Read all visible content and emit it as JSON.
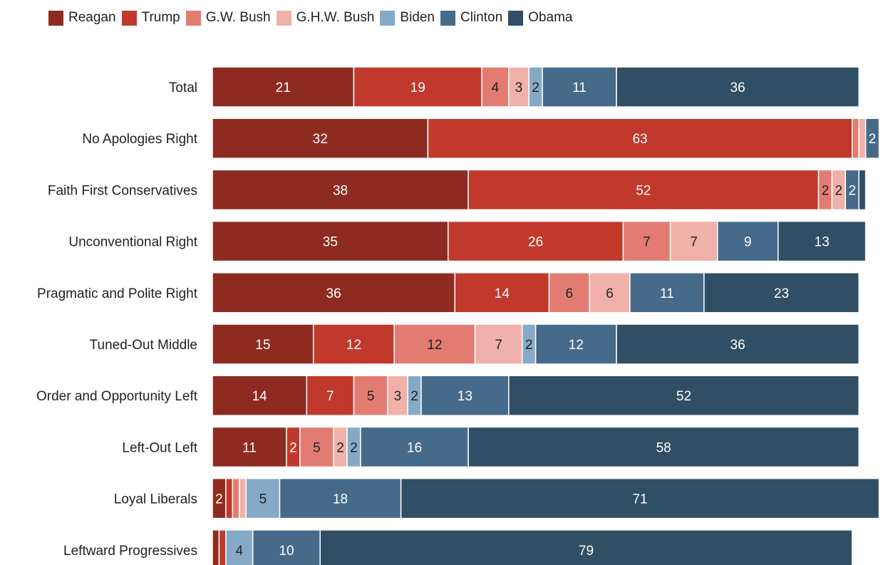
{
  "chart_data": {
    "type": "bar",
    "orientation": "horizontal",
    "stacked": true,
    "legend_position": "top-left",
    "grid": false,
    "xlim": [
      0,
      100
    ],
    "categories": [
      "Total",
      "No Apologies Right",
      "Faith First Conservatives",
      "Unconventional Right",
      "Pragmatic and Polite Right",
      "Tuned-Out Middle",
      "Order and Opportunity Left",
      "Left-Out Left",
      "Loyal Liberals",
      "Leftward Progressives"
    ],
    "series": [
      {
        "name": "Reagan",
        "color": "#8e2b20",
        "values": [
          21,
          32,
          38,
          35,
          36,
          15,
          14,
          11,
          2,
          1
        ]
      },
      {
        "name": "Trump",
        "color": "#c0392b",
        "values": [
          19,
          63,
          52,
          26,
          14,
          12,
          7,
          2,
          1,
          1
        ]
      },
      {
        "name": "G.W. Bush",
        "color": "#e27c72",
        "values": [
          4,
          1,
          2,
          7,
          6,
          12,
          5,
          5,
          1,
          0
        ]
      },
      {
        "name": "G.H.W. Bush",
        "color": "#efb1a9",
        "values": [
          3,
          1,
          2,
          7,
          6,
          7,
          3,
          2,
          1,
          0
        ]
      },
      {
        "name": "Biden",
        "color": "#85aac8",
        "values": [
          2,
          0,
          0,
          0,
          0,
          2,
          2,
          2,
          5,
          4
        ]
      },
      {
        "name": "Clinton",
        "color": "#466a89",
        "values": [
          11,
          2,
          2,
          9,
          11,
          12,
          13,
          16,
          18,
          10
        ]
      },
      {
        "name": "Obama",
        "color": "#304e64",
        "values": [
          36,
          0,
          1,
          13,
          23,
          36,
          52,
          58,
          71,
          79
        ]
      }
    ],
    "data_labels": [
      [
        "21",
        "19",
        "4",
        "3",
        "2",
        "11",
        "36"
      ],
      [
        "32",
        "63",
        "",
        "",
        "",
        "2",
        ""
      ],
      [
        "38",
        "52",
        "2",
        "2",
        "",
        "2",
        ""
      ],
      [
        "35",
        "26",
        "7",
        "7",
        "",
        "9",
        "13"
      ],
      [
        "36",
        "14",
        "6",
        "6",
        "",
        "11",
        "23"
      ],
      [
        "15",
        "12",
        "12",
        "7",
        "2",
        "12",
        "36"
      ],
      [
        "14",
        "7",
        "5",
        "3",
        "2",
        "13",
        "52"
      ],
      [
        "11",
        "2",
        "5",
        "2",
        "2",
        "16",
        "58"
      ],
      [
        "2",
        "",
        "",
        "",
        "5",
        "18",
        "71"
      ],
      [
        "",
        "",
        "",
        "",
        "4",
        "10",
        "79"
      ]
    ]
  }
}
